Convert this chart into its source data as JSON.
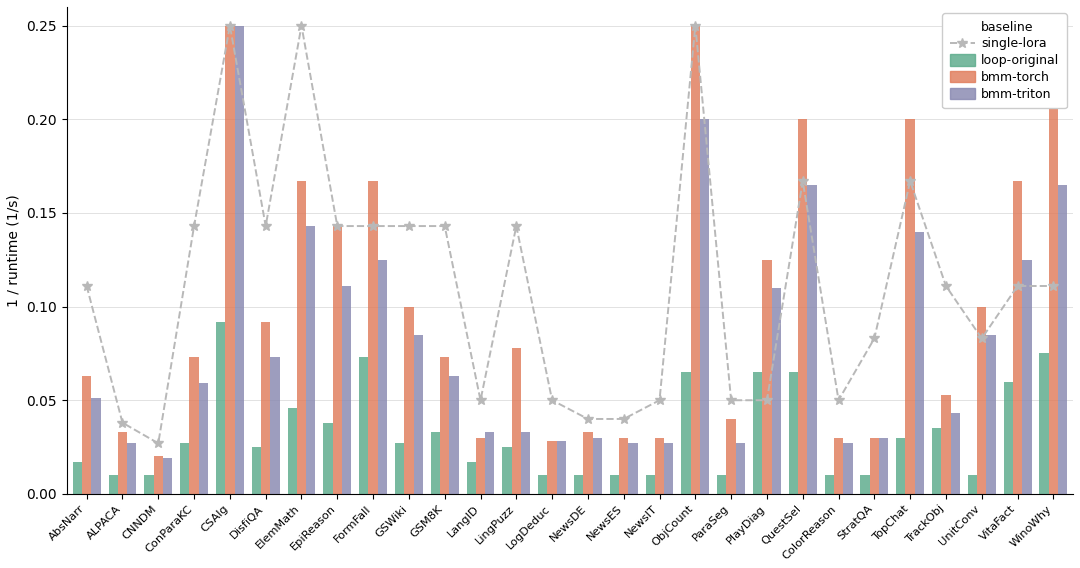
{
  "categories": [
    "AbsNarr",
    "ALPACA",
    "CNNDM",
    "ConParaKC",
    "CSAlg",
    "DisfiQA",
    "ElemMath",
    "EpiReason",
    "FormFall",
    "GSWiki",
    "GSM8K",
    "LangID",
    "LingPuzz",
    "LogDeduc",
    "NewsDE",
    "NewsES",
    "NewsIT",
    "ObjCount",
    "ParaSeg",
    "PlayDiag",
    "QuestSel",
    "ColorReason",
    "StratQA",
    "TopChat",
    "TrackObj",
    "UnitConv",
    "VitaFact",
    "WinoWhy"
  ],
  "loop_original": [
    0.017,
    0.01,
    0.01,
    0.027,
    0.092,
    0.025,
    0.046,
    0.038,
    0.073,
    0.027,
    0.033,
    0.017,
    0.025,
    0.01,
    0.01,
    0.01,
    0.01,
    0.065,
    0.01,
    0.065,
    0.065,
    0.01,
    0.01,
    0.03,
    0.035,
    0.01,
    0.06,
    0.075
  ],
  "bmm_torch": [
    0.063,
    0.033,
    0.02,
    0.073,
    0.25,
    0.092,
    0.167,
    0.143,
    0.167,
    0.1,
    0.073,
    0.03,
    0.078,
    0.028,
    0.033,
    0.03,
    0.03,
    0.25,
    0.04,
    0.125,
    0.2,
    0.03,
    0.03,
    0.2,
    0.053,
    0.1,
    0.167,
    0.25
  ],
  "bmm_triton": [
    0.051,
    0.027,
    0.019,
    0.059,
    0.25,
    0.073,
    0.143,
    0.111,
    0.125,
    0.085,
    0.063,
    0.033,
    0.033,
    0.028,
    0.03,
    0.027,
    0.027,
    0.2,
    0.027,
    0.11,
    0.165,
    0.027,
    0.03,
    0.14,
    0.043,
    0.085,
    0.125,
    0.165
  ],
  "single_lora": [
    0.111,
    0.038,
    0.027,
    0.143,
    0.25,
    0.143,
    0.25,
    0.143,
    0.143,
    0.143,
    0.143,
    0.05,
    0.143,
    0.05,
    0.04,
    0.04,
    0.05,
    0.25,
    0.05,
    0.05,
    0.167,
    0.05,
    0.083,
    0.167,
    0.111,
    0.083,
    0.111,
    0.111
  ],
  "bar_width": 0.26,
  "colors": {
    "loop_original": "#5aaa8a",
    "bmm_torch": "#e07b5a",
    "bmm_triton": "#8888b0",
    "single_lora": "#c0c0c0"
  },
  "ylabel": "1 / runtime (1/s)",
  "ylim": [
    0,
    0.26
  ],
  "yticks": [
    0.0,
    0.05,
    0.1,
    0.15,
    0.2,
    0.25
  ],
  "background_color": "#ffffff"
}
